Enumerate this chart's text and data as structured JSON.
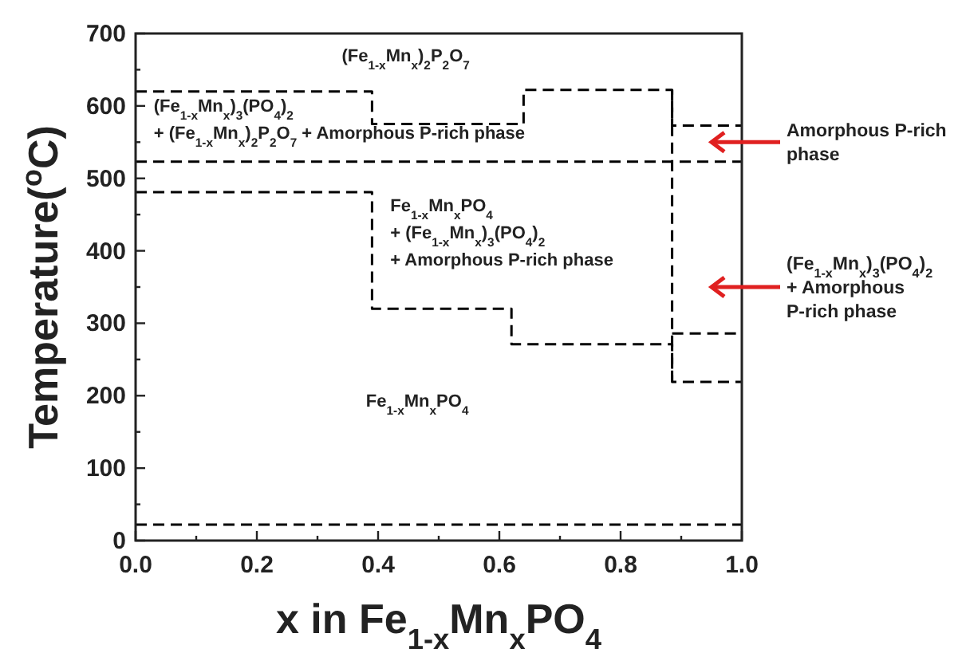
{
  "chart_data": {
    "type": "step",
    "xlabel": "x in Fe$_{1-x}$Mn$_{x}$PO$_{4}$",
    "ylabel": "Temperature($^{o}$C)",
    "xlim": [
      0,
      1
    ],
    "ylim": [
      0,
      700
    ],
    "xticks": [
      {
        "value": 0,
        "label": "0.0"
      },
      {
        "value": 0.1,
        "label": null
      },
      {
        "value": 0.2,
        "label": "0.2"
      },
      {
        "value": 0.3,
        "label": null
      },
      {
        "value": 0.4,
        "label": "0.4"
      },
      {
        "value": 0.5,
        "label": null
      },
      {
        "value": 0.6,
        "label": "0.6"
      },
      {
        "value": 0.7,
        "label": null
      },
      {
        "value": 0.8,
        "label": "0.8"
      },
      {
        "value": 0.9,
        "label": null
      },
      {
        "value": 1,
        "label": "1.0"
      }
    ],
    "yticks": [
      0,
      {
        "value": 50,
        "label": null
      },
      100,
      {
        "value": 150,
        "label": null
      },
      200,
      {
        "value": 250,
        "label": null
      },
      300,
      {
        "value": 350,
        "label": null
      },
      400,
      {
        "value": 450,
        "label": null
      },
      500,
      {
        "value": 550,
        "label": null
      },
      600,
      {
        "value": 650,
        "label": null
      },
      700
    ],
    "grid": false,
    "line_style": "dashed",
    "marker": "none",
    "series": [
      {
        "color": "#000000",
        "x": [
          0,
          0.39,
          0.64,
          0.885,
          1.0
        ],
        "values": [
          620,
          575,
          622,
          573,
          573
        ]
      },
      {
        "color": "#000000",
        "x": [
          0,
          1.0
        ],
        "values": [
          523,
          523
        ]
      },
      {
        "color": "#000000",
        "x": [
          0,
          0.39,
          0.62,
          0.885,
          1.0
        ],
        "values": [
          481,
          320,
          271,
          219,
          219
        ]
      },
      {
        "type": "line",
        "color": "#000000",
        "x": [
          0.885,
          0.885
        ],
        "values": [
          622,
          219
        ]
      },
      {
        "color": "#000000",
        "x": [
          0.885,
          1.0
        ],
        "values": [
          286,
          286
        ]
      },
      {
        "color": "#000000",
        "x": [
          0,
          1.0
        ],
        "values": [
          22,
          22
        ]
      }
    ],
    "annotations": [
      "(Fe$_{1-x}$Mn$_{x}$)$_{2}$P$_{2}$O$_{7}$",
      "(Fe$_{1-x}$Mn$_{x}$)$_{3}$(PO$_{4}$)$_{2}$\n+ (Fe$_{1-x}$Mn$_{x}$)$_{2}$P$_{2}$O$_{7}$ + Amorphous P-rich phase",
      "Fe$_{1-x}$Mn$_{x}$PO$_{4}$\n+ (Fe$_{1-x}$Mn$_{x}$)$_{3}$(PO$_{4}$)$_{2}$\n+ Amorphous P-rich phase",
      "Fe$_{1-x}$Mn$_{x}$PO$_{4}$",
      "Amorphous P-rich\nphase",
      "(Fe$_{1-x}$Mn$_{x}$)$_{3}$(PO$_{4}$)$_{2}$\n+ Amorphous\nP-rich phase"
    ]
  }
}
